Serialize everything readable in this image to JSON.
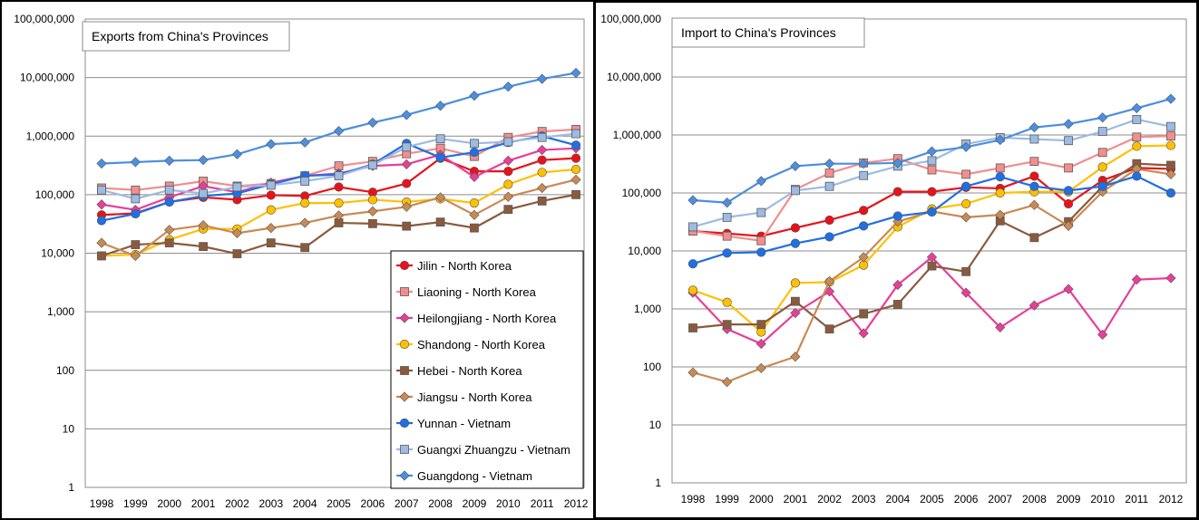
{
  "chart_data": [
    {
      "type": "line",
      "title": "Exports from China's Provinces",
      "yscale": "log",
      "ylim": [
        1,
        100000000
      ],
      "y_ticks": [
        "1",
        "10",
        "100",
        "1,000",
        "10,000",
        "100,000",
        "1,000,000",
        "10,000,000",
        "100,000,000"
      ],
      "categories": [
        "1998",
        "1999",
        "2000",
        "2001",
        "2002",
        "2003",
        "2004",
        "2005",
        "2006",
        "2007",
        "2008",
        "2009",
        "2010",
        "2011",
        "2012"
      ],
      "grid": true,
      "legend": "bottom-right",
      "series": [
        {
          "name": "Jilin - North Korea",
          "color": "#e8121b",
          "marker": "circle",
          "values": [
            45000,
            48000,
            75000,
            90000,
            82000,
            98000,
            95000,
            135000,
            110000,
            155000,
            420000,
            250000,
            250000,
            390000,
            420000
          ]
        },
        {
          "name": "Liaoning - North Korea",
          "color": "#f28e8e",
          "marker": "square",
          "values": [
            130000,
            120000,
            140000,
            170000,
            140000,
            155000,
            210000,
            310000,
            370000,
            500000,
            620000,
            450000,
            950000,
            1200000,
            1300000
          ]
        },
        {
          "name": "Heilongjiang - North Korea",
          "color": "#e83e98",
          "marker": "diamond",
          "values": [
            68000,
            55000,
            90000,
            140000,
            110000,
            160000,
            210000,
            230000,
            310000,
            330000,
            480000,
            200000,
            380000,
            580000,
            620000
          ]
        },
        {
          "name": "Shandong - North Korea",
          "color": "#ffc000",
          "marker": "circle",
          "values": [
            9000,
            9500,
            17000,
            26000,
            26000,
            55000,
            72000,
            72000,
            82000,
            75000,
            85000,
            72000,
            150000,
            240000,
            270000
          ]
        },
        {
          "name": "Hebei - North Korea",
          "color": "#8b5a3c",
          "marker": "square",
          "values": [
            9000,
            14000,
            15000,
            13000,
            9800,
            15000,
            12500,
            33000,
            32000,
            29000,
            34000,
            27000,
            56000,
            78000,
            100000
          ]
        },
        {
          "name": "Jiangsu - North Korea",
          "color": "#c98a53",
          "marker": "diamond",
          "values": [
            15000,
            9000,
            25000,
            30000,
            22000,
            27000,
            33000,
            44000,
            52000,
            62000,
            90000,
            45000,
            92000,
            130000,
            180000
          ]
        },
        {
          "name": "Yunnan - Vietnam",
          "color": "#1f6fe5",
          "marker": "circle",
          "values": [
            36000,
            47000,
            75000,
            95000,
            105000,
            150000,
            210000,
            220000,
            330000,
            750000,
            430000,
            530000,
            780000,
            1000000,
            700000
          ]
        },
        {
          "name": "Guangxi Zhuangzu - Vietnam",
          "color": "#9dbbe3",
          "marker": "square",
          "values": [
            120000,
            85000,
            120000,
            105000,
            135000,
            145000,
            170000,
            210000,
            320000,
            650000,
            900000,
            750000,
            800000,
            950000,
            1100000
          ]
        },
        {
          "name": "Guangdong - Vietnam",
          "color": "#4a8fe0",
          "marker": "diamond",
          "values": [
            340000,
            360000,
            380000,
            390000,
            490000,
            730000,
            780000,
            1220000,
            1700000,
            2300000,
            3300000,
            4900000,
            7000000,
            9500000,
            12000000
          ]
        }
      ]
    },
    {
      "type": "line",
      "title": "Import to China's Provinces",
      "yscale": "log",
      "ylim": [
        1,
        100000000
      ],
      "y_ticks": [
        "1",
        "10",
        "100",
        "1,000",
        "10,000",
        "100,000",
        "1,000,000",
        "10,000,000",
        "100,000,000"
      ],
      "categories": [
        "1998",
        "1999",
        "2000",
        "2001",
        "2002",
        "2003",
        "2004",
        "2005",
        "2006",
        "2007",
        "2008",
        "2009",
        "2010",
        "2011",
        "2012"
      ],
      "grid": true,
      "legend": "none",
      "series": [
        {
          "name": "Jilin - North Korea",
          "color": "#e8121b",
          "marker": "circle",
          "values": [
            22000,
            20000,
            18000,
            25000,
            34000,
            50000,
            105000,
            105000,
            125000,
            120000,
            195000,
            65000,
            165000,
            270000,
            260000
          ]
        },
        {
          "name": "Liaoning - North Korea",
          "color": "#f28e8e",
          "marker": "square",
          "values": [
            22000,
            18000,
            15000,
            115000,
            220000,
            330000,
            390000,
            250000,
            210000,
            270000,
            350000,
            270000,
            500000,
            920000,
            960000
          ]
        },
        {
          "name": "Heilongjiang - North Korea",
          "color": "#e83e98",
          "marker": "diamond",
          "values": [
            1900,
            450,
            250,
            850,
            2000,
            380,
            2600,
            7800,
            1900,
            480,
            1150,
            2200,
            360,
            3200,
            3400
          ]
        },
        {
          "name": "Shandong - North Korea",
          "color": "#ffc000",
          "marker": "circle",
          "values": [
            2100,
            1300,
            400,
            2800,
            2900,
            5700,
            26000,
            53000,
            65000,
            100000,
            105000,
            105000,
            280000,
            640000,
            660000
          ]
        },
        {
          "name": "Hebei - North Korea",
          "color": "#8b5a3c",
          "marker": "square",
          "values": [
            470,
            540,
            540,
            1350,
            450,
            820,
            1200,
            5500,
            4400,
            33000,
            17000,
            32000,
            130000,
            320000,
            300000
          ]
        },
        {
          "name": "Jiangsu - North Korea",
          "color": "#c98a53",
          "marker": "diamond",
          "values": [
            80,
            55,
            95,
            150,
            3000,
            7800,
            32000,
            48000,
            38000,
            42000,
            62000,
            27000,
            105000,
            260000,
            210000
          ]
        },
        {
          "name": "Yunnan - Vietnam",
          "color": "#1f6fe5",
          "marker": "circle",
          "values": [
            6000,
            9200,
            9500,
            13500,
            17500,
            27000,
            40000,
            47000,
            130000,
            190000,
            130000,
            110000,
            130000,
            195000,
            100000
          ]
        },
        {
          "name": "Guangxi Zhuangzu - Vietnam",
          "color": "#9dbbe3",
          "marker": "square",
          "values": [
            26000,
            38000,
            46000,
            110000,
            130000,
            200000,
            290000,
            360000,
            700000,
            900000,
            850000,
            800000,
            1150000,
            1850000,
            1400000
          ]
        },
        {
          "name": "Guangdong - Vietnam",
          "color": "#4a8fe0",
          "marker": "diamond",
          "values": [
            75000,
            68000,
            160000,
            290000,
            320000,
            320000,
            330000,
            520000,
            620000,
            820000,
            1350000,
            1550000,
            2000000,
            2900000,
            4200000
          ]
        }
      ]
    }
  ]
}
